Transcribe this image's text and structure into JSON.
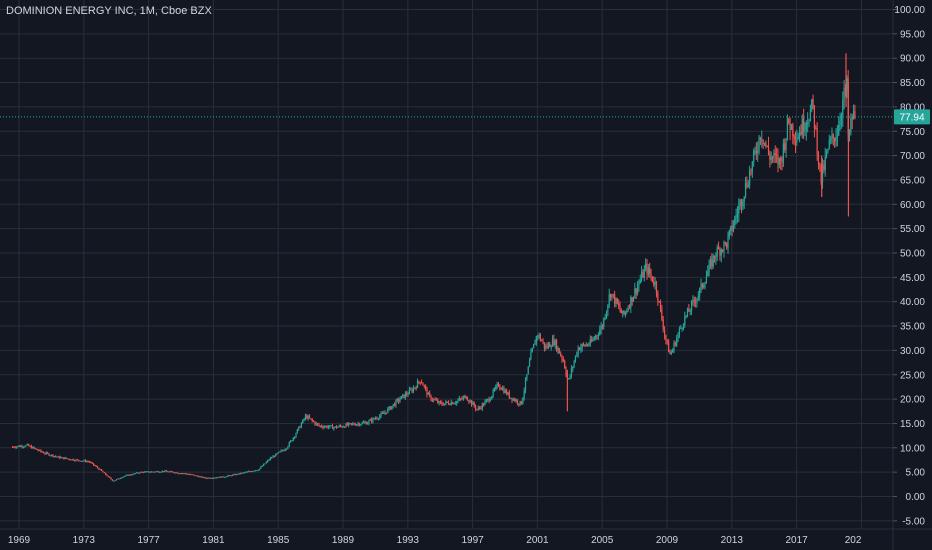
{
  "chart_data": {
    "type": "candlestick",
    "title": "DOMINION ENERGY INC, 1M, Cboe BZX",
    "interval": "1M",
    "ylim": [
      -5,
      100
    ],
    "xlim": [
      1968.6,
      2020.7
    ],
    "yticks": [
      "100.00",
      "95.00",
      "90.00",
      "85.00",
      "80.00",
      "75.00",
      "70.00",
      "65.00",
      "60.00",
      "55.00",
      "50.00",
      "45.00",
      "40.00",
      "35.00",
      "30.00",
      "25.00",
      "20.00",
      "15.00",
      "10.00",
      "5.00",
      "0.00",
      "-5.00"
    ],
    "xticks": [
      "1969",
      "1973",
      "1977",
      "1981",
      "1985",
      "1989",
      "1993",
      "1997",
      "2001",
      "2005",
      "2009",
      "2013",
      "2017",
      "202"
    ],
    "grid": true,
    "last_price": 77.94,
    "last_price_label": "77.94",
    "colors": {
      "background": "#131722",
      "up": "#26a69a",
      "down": "#ef5350",
      "grid": "#2a2e39",
      "text": "#d1d4dc",
      "price_line": "#26a69a"
    },
    "close_path": [
      [
        1968.6,
        10.2
      ],
      [
        1969.5,
        10.5
      ],
      [
        1970.5,
        9.0
      ],
      [
        1971.5,
        8.0
      ],
      [
        1972.5,
        7.5
      ],
      [
        1973.3,
        7.2
      ],
      [
        1974.0,
        5.5
      ],
      [
        1974.8,
        3.2
      ],
      [
        1975.5,
        4.2
      ],
      [
        1976.5,
        5.0
      ],
      [
        1978.0,
        5.2
      ],
      [
        1979.5,
        4.6
      ],
      [
        1980.5,
        3.8
      ],
      [
        1981.5,
        4.0
      ],
      [
        1982.5,
        4.6
      ],
      [
        1983.8,
        5.6
      ],
      [
        1984.5,
        7.8
      ],
      [
        1985.5,
        10.0
      ],
      [
        1986.0,
        12.5
      ],
      [
        1986.7,
        16.5
      ],
      [
        1987.5,
        14.5
      ],
      [
        1988.5,
        14.2
      ],
      [
        1989.5,
        14.8
      ],
      [
        1990.5,
        15.2
      ],
      [
        1991.5,
        17.0
      ],
      [
        1992.5,
        20.0
      ],
      [
        1993.3,
        22.0
      ],
      [
        1993.8,
        24.0
      ],
      [
        1994.3,
        20.5
      ],
      [
        1995.0,
        19.0
      ],
      [
        1996.0,
        19.5
      ],
      [
        1996.6,
        20.5
      ],
      [
        1997.3,
        17.8
      ],
      [
        1998.0,
        20.0
      ],
      [
        1998.6,
        23.0
      ],
      [
        1999.3,
        20.5
      ],
      [
        2000.0,
        19.0
      ],
      [
        2000.6,
        29.0
      ],
      [
        2001.0,
        33.5
      ],
      [
        2001.5,
        30.5
      ],
      [
        2002.0,
        32.0
      ],
      [
        2002.6,
        28.0
      ],
      [
        2002.9,
        23.5
      ],
      [
        2003.5,
        30.5
      ],
      [
        2004.3,
        31.5
      ],
      [
        2005.0,
        35.0
      ],
      [
        2005.5,
        42.0
      ],
      [
        2006.3,
        37.0
      ],
      [
        2007.0,
        42.0
      ],
      [
        2007.7,
        47.0
      ],
      [
        2008.3,
        43.5
      ],
      [
        2008.9,
        32.5
      ],
      [
        2009.2,
        29.0
      ],
      [
        2010.0,
        36.0
      ],
      [
        2011.0,
        42.0
      ],
      [
        2012.0,
        50.0
      ],
      [
        2012.7,
        52.0
      ],
      [
        2013.5,
        60.0
      ],
      [
        2014.3,
        68.5
      ],
      [
        2014.8,
        75.0
      ],
      [
        2015.3,
        70.0
      ],
      [
        2016.0,
        68.5
      ],
      [
        2016.5,
        77.0
      ],
      [
        2017.0,
        74.0
      ],
      [
        2017.5,
        77.0
      ],
      [
        2018.0,
        80.0
      ],
      [
        2018.5,
        65.0
      ],
      [
        2019.0,
        72.0
      ],
      [
        2019.5,
        75.0
      ],
      [
        2019.9,
        82.0
      ],
      [
        2020.1,
        84.0
      ],
      [
        2020.2,
        72.0
      ],
      [
        2020.4,
        78.0
      ],
      [
        2020.6,
        77.94
      ]
    ],
    "wicks": [
      [
        2002.85,
        17.5,
        26.0
      ],
      [
        2018.55,
        61.5,
        70.0
      ],
      [
        2020.05,
        80.0,
        91.0
      ],
      [
        2020.2,
        57.5,
        85.0
      ]
    ]
  }
}
